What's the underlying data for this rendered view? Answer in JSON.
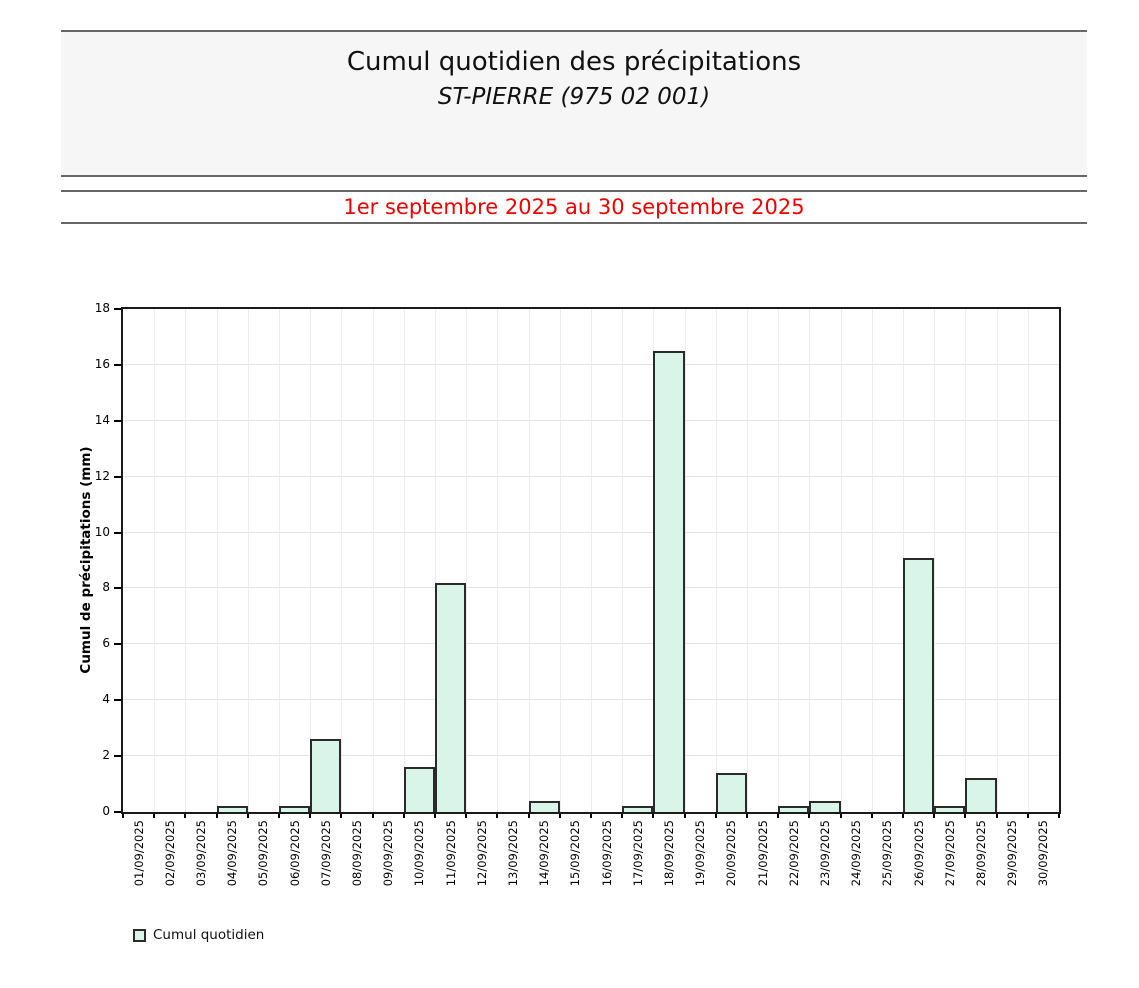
{
  "header": {
    "title": "Cumul quotidien des précipitations",
    "subtitle": "ST-PIERRE (975 02 001)",
    "period": "1er septembre 2025 au 30 septembre 2025",
    "period_color": "#ee0000"
  },
  "chart_data": {
    "type": "bar",
    "title": "Cumul quotidien des précipitations",
    "subtitle": "ST-PIERRE (975 02 001)",
    "xlabel": "",
    "ylabel": "Cumul de précipitations (mm)",
    "ylim": [
      0,
      18
    ],
    "yticks": [
      0,
      2,
      4,
      6,
      8,
      10,
      12,
      14,
      16,
      18
    ],
    "grid": true,
    "legend_position": "bottom-left",
    "legend_label": "Cumul quotidien",
    "bar_fill_color": "#d9f5e9",
    "bar_border_color": "#2a2a2a",
    "categories": [
      "01/09/2025",
      "02/09/2025",
      "03/09/2025",
      "04/09/2025",
      "05/09/2025",
      "06/09/2025",
      "07/09/2025",
      "08/09/2025",
      "09/09/2025",
      "10/09/2025",
      "11/09/2025",
      "12/09/2025",
      "13/09/2025",
      "14/09/2025",
      "15/09/2025",
      "16/09/2025",
      "17/09/2025",
      "18/09/2025",
      "19/09/2025",
      "20/09/2025",
      "21/09/2025",
      "22/09/2025",
      "23/09/2025",
      "24/09/2025",
      "25/09/2025",
      "26/09/2025",
      "27/09/2025",
      "28/09/2025",
      "29/09/2025",
      "30/09/2025"
    ],
    "values": [
      0,
      0,
      0,
      0.2,
      0,
      0.2,
      2.6,
      0,
      0,
      1.6,
      8.2,
      0,
      0,
      0.4,
      0,
      0,
      0.2,
      16.5,
      0,
      1.4,
      0,
      0.2,
      0.4,
      0,
      0,
      9.1,
      0.2,
      1.2,
      0,
      0
    ]
  }
}
